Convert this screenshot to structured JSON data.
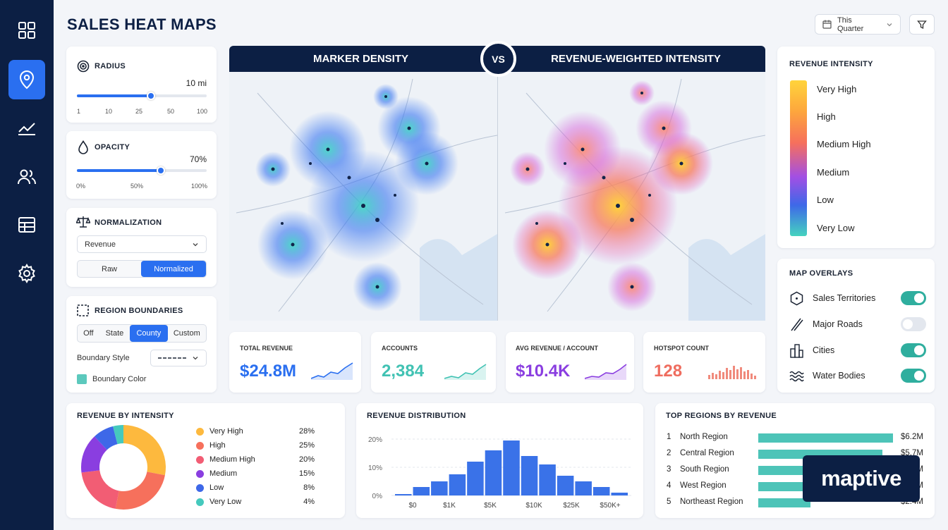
{
  "page_title": "SALES HEAT MAPS",
  "header": {
    "date_range": "This Quarter"
  },
  "nav": [
    "dashboard-icon",
    "map-pin-icon",
    "chart-line-icon",
    "users-icon",
    "table-icon",
    "settings-icon"
  ],
  "radius": {
    "title": "RADIUS",
    "value": "10 mi",
    "ticks": [
      "1",
      "10",
      "25",
      "50",
      "100"
    ]
  },
  "opacity": {
    "title": "OPACITY",
    "value": "70%",
    "ticks": [
      "0%",
      "50%",
      "100%"
    ]
  },
  "normalization": {
    "title": "NORMALIZATION",
    "select": "Revenue",
    "options": [
      "Raw",
      "Normalized"
    ],
    "selected": "Normalized"
  },
  "boundaries": {
    "title": "REGION BOUNDARIES",
    "options": [
      "Off",
      "State",
      "County",
      "Custom"
    ],
    "selected": "County",
    "style_label": "Boundary Style",
    "color_label": "Boundary Color",
    "color": "#5cc9bd"
  },
  "maps": {
    "left_title": "MARKER DENSITY",
    "right_title": "REVENUE-WEIGHTED INTENSITY",
    "vs": "VS"
  },
  "kpis": [
    {
      "label": "TOTAL REVENUE",
      "value": "$24.8M",
      "color": "#2a6ff0"
    },
    {
      "label": "ACCOUNTS",
      "value": "2,384",
      "color": "#41c2b3"
    },
    {
      "label": "AVG REVENUE / ACCOUNT",
      "value": "$10.4K",
      "color": "#8a3ee0"
    },
    {
      "label": "HOTSPOT COUNT",
      "value": "128",
      "color": "#ef6d5f"
    }
  ],
  "intensity_legend": {
    "title": "REVENUE INTENSITY",
    "levels": [
      "Very High",
      "High",
      "Medium High",
      "Medium",
      "Low",
      "Very Low"
    ]
  },
  "overlays": {
    "title": "MAP OVERLAYS",
    "items": [
      {
        "label": "Sales Territories",
        "on": true
      },
      {
        "label": "Major Roads",
        "on": false
      },
      {
        "label": "Cities",
        "on": true
      },
      {
        "label": "Water Bodies",
        "on": true
      }
    ]
  },
  "revenue_by_intensity": {
    "title": "REVENUE BY INTENSITY",
    "items": [
      {
        "label": "Very High",
        "pct": "28%",
        "value": 28,
        "color": "#fdb93e"
      },
      {
        "label": "High",
        "pct": "25%",
        "value": 25,
        "color": "#f6705c"
      },
      {
        "label": "Medium High",
        "pct": "20%",
        "value": 20,
        "color": "#f25d74"
      },
      {
        "label": "Medium",
        "pct": "15%",
        "value": 15,
        "color": "#8a3ee0"
      },
      {
        "label": "Low",
        "pct": "8%",
        "value": 8,
        "color": "#3e68e8"
      },
      {
        "label": "Very Low",
        "pct": "4%",
        "value": 4,
        "color": "#45c9bd"
      }
    ]
  },
  "chart_data": {
    "type": "bar",
    "title": "REVENUE DISTRIBUTION",
    "ylim": [
      0,
      20
    ],
    "yticks": [
      "20%",
      "10%",
      "0%"
    ],
    "xticks": [
      "$0",
      "$1K",
      "$5K",
      "$10K",
      "$25K",
      "$50K+"
    ],
    "values": [
      0.5,
      3,
      5,
      7.5,
      12,
      16,
      19.5,
      14,
      11,
      7,
      5,
      3,
      1
    ]
  },
  "top_regions": {
    "title": "TOP REGIONS BY REVENUE",
    "items": [
      {
        "rank": "1",
        "name": "North Region",
        "value": "$6.2M",
        "amount": 6.2
      },
      {
        "rank": "2",
        "name": "Central Region",
        "value": "$5.7M",
        "amount": 5.7
      },
      {
        "rank": "3",
        "name": "South Region",
        "value": "$4.9M",
        "amount": 4.9
      },
      {
        "rank": "4",
        "name": "West Region",
        "value": "$3.6M",
        "amount": 3.6
      },
      {
        "rank": "5",
        "name": "Northeast Region",
        "value": "$2.4M",
        "amount": 2.4
      }
    ]
  },
  "brand": "maptive"
}
